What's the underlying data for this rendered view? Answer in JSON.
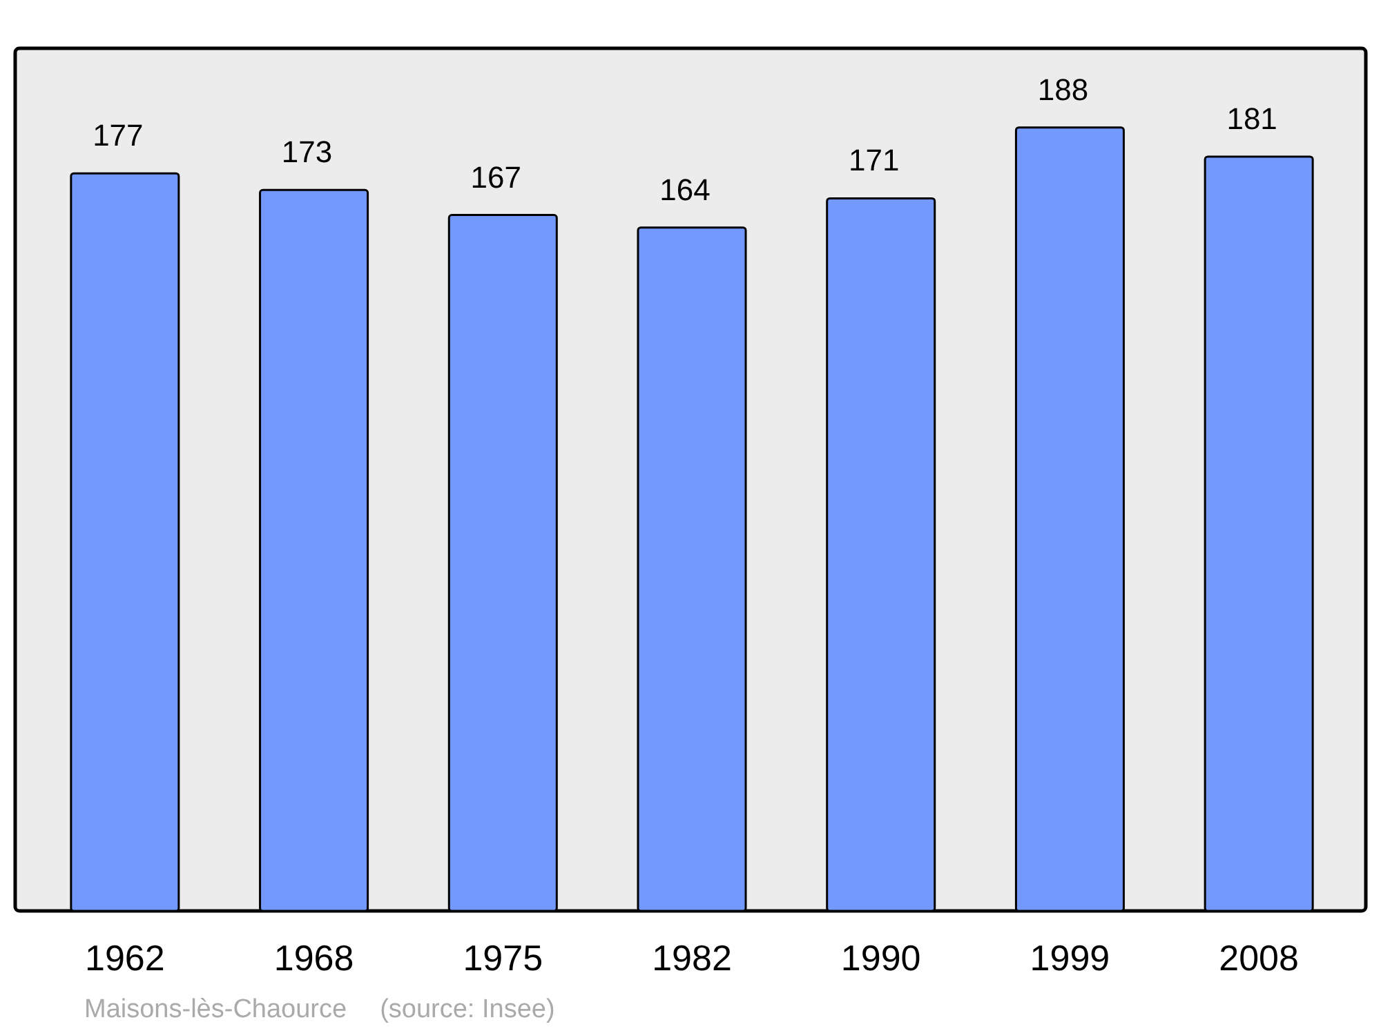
{
  "chart_data": {
    "type": "bar",
    "categories": [
      "1962",
      "1968",
      "1975",
      "1982",
      "1990",
      "1999",
      "2008"
    ],
    "values": [
      177,
      173,
      167,
      164,
      171,
      188,
      181
    ],
    "color": "#7399ff",
    "ylim": [
      0,
      207
    ],
    "data_labels": true,
    "annotations": [
      "Maisons-lès-Chaource",
      "(source: Insee)"
    ]
  }
}
